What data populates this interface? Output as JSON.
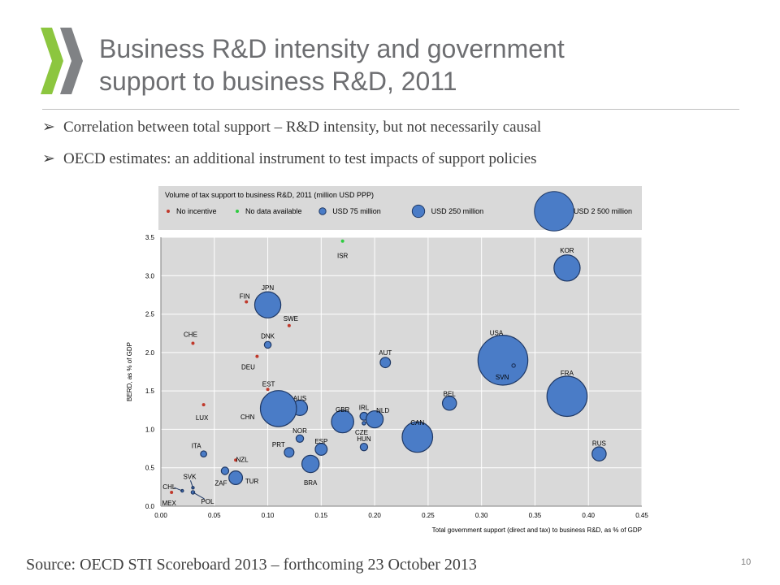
{
  "slide": {
    "title_line1": "Business R&D intensity and government",
    "title_line2": "support to business R&D, 2011",
    "bullets": [
      "Correlation between total support – R&D intensity, but not necessarily causal",
      "OECD  estimates: an additional instrument to test impacts of support policies"
    ],
    "bullet_marker": "➢",
    "source": "Source: OECD STI Scoreboard 2013 – forthcoming 23 October 2013",
    "page_number": "10"
  },
  "colors": {
    "accent_green": "#8cc63f",
    "logo_grey": "#808285",
    "bubble_fill": "#4a7cc7",
    "bubble_stroke": "#1f3864",
    "no_incentive": "#c0392b",
    "no_data": "#2ecc40",
    "plot_bg": "#d9d9d9"
  },
  "chart_data": {
    "type": "scatter",
    "legend_title": "Volume of tax support to business R&D, 2011 (million USD PPP)",
    "legend": [
      {
        "label": "No incentive",
        "kind": "no_incentive"
      },
      {
        "label": "No data available",
        "kind": "no_data"
      },
      {
        "label": "USD 75 million",
        "kind": "bubble",
        "value": 75
      },
      {
        "label": "USD 250 million",
        "kind": "bubble",
        "value": 250
      },
      {
        "label": "USD 2 500 million",
        "kind": "bubble",
        "value": 2500
      }
    ],
    "legend_placement": "top",
    "xlabel": "Total government support (direct and tax) to business R&D, as % of GDP",
    "ylabel": "BERD, as % of GDP",
    "xlim": [
      0,
      0.45
    ],
    "ylim": [
      0,
      3.5
    ],
    "xticks": [
      "0.00",
      "0.05",
      "0.10",
      "0.15",
      "0.20",
      "0.25",
      "0.30",
      "0.35",
      "0.40",
      "0.45"
    ],
    "yticks": [
      "0.0",
      "0.5",
      "1.0",
      "1.5",
      "2.0",
      "2.5",
      "3.0",
      "3.5"
    ],
    "grid": true,
    "points": [
      {
        "label": "ISR",
        "x": 0.17,
        "y": 3.45,
        "kind": "no_data",
        "size": 0
      },
      {
        "label": "KOR",
        "x": 0.38,
        "y": 3.1,
        "kind": "bubble",
        "size": 1100
      },
      {
        "label": "JPN",
        "x": 0.1,
        "y": 2.62,
        "kind": "bubble",
        "size": 1100
      },
      {
        "label": "FIN",
        "x": 0.08,
        "y": 2.66,
        "kind": "no_incentive",
        "size": 0
      },
      {
        "label": "SWE",
        "x": 0.12,
        "y": 2.35,
        "kind": "no_incentive",
        "size": 0
      },
      {
        "label": "CHE",
        "x": 0.03,
        "y": 2.12,
        "kind": "no_incentive",
        "size": 0
      },
      {
        "label": "DNK",
        "x": 0.1,
        "y": 2.1,
        "kind": "bubble",
        "size": 75
      },
      {
        "label": "DEU",
        "x": 0.09,
        "y": 1.95,
        "kind": "no_incentive",
        "size": 0
      },
      {
        "label": "USA",
        "x": 0.32,
        "y": 1.9,
        "kind": "bubble",
        "size": 4000
      },
      {
        "label": "SVN",
        "x": 0.33,
        "y": 1.83,
        "kind": "bubble",
        "size": 20
      },
      {
        "label": "AUT",
        "x": 0.21,
        "y": 1.87,
        "kind": "bubble",
        "size": 170
      },
      {
        "label": "FRA",
        "x": 0.38,
        "y": 1.43,
        "kind": "bubble",
        "size": 2600
      },
      {
        "label": "EST",
        "x": 0.1,
        "y": 1.52,
        "kind": "no_incentive",
        "size": 0
      },
      {
        "label": "AUS",
        "x": 0.13,
        "y": 1.28,
        "kind": "bubble",
        "size": 380
      },
      {
        "label": "CHN",
        "x": 0.11,
        "y": 1.27,
        "kind": "bubble",
        "size": 2100
      },
      {
        "label": "BEL",
        "x": 0.27,
        "y": 1.34,
        "kind": "bubble",
        "size": 320
      },
      {
        "label": "LUX",
        "x": 0.04,
        "y": 1.32,
        "kind": "no_incentive",
        "size": 0
      },
      {
        "label": "GBR",
        "x": 0.17,
        "y": 1.1,
        "kind": "bubble",
        "size": 800
      },
      {
        "label": "IRL",
        "x": 0.19,
        "y": 1.17,
        "kind": "bubble",
        "size": 100
      },
      {
        "label": "NLD",
        "x": 0.2,
        "y": 1.13,
        "kind": "bubble",
        "size": 470
      },
      {
        "label": "CZE",
        "x": 0.19,
        "y": 1.08,
        "kind": "bubble",
        "size": 20
      },
      {
        "label": "CAN",
        "x": 0.24,
        "y": 0.9,
        "kind": "bubble",
        "size": 1500
      },
      {
        "label": "NOR",
        "x": 0.13,
        "y": 0.88,
        "kind": "bubble",
        "size": 90
      },
      {
        "label": "HUN",
        "x": 0.19,
        "y": 0.77,
        "kind": "bubble",
        "size": 90
      },
      {
        "label": "ESP",
        "x": 0.15,
        "y": 0.74,
        "kind": "bubble",
        "size": 230
      },
      {
        "label": "PRT",
        "x": 0.12,
        "y": 0.7,
        "kind": "bubble",
        "size": 150
      },
      {
        "label": "ITA",
        "x": 0.04,
        "y": 0.68,
        "kind": "bubble",
        "size": 60
      },
      {
        "label": "RUS",
        "x": 0.41,
        "y": 0.68,
        "kind": "bubble",
        "size": 320
      },
      {
        "label": "NZL",
        "x": 0.07,
        "y": 0.6,
        "kind": "no_incentive",
        "size": 0
      },
      {
        "label": "BRA",
        "x": 0.14,
        "y": 0.55,
        "kind": "bubble",
        "size": 480
      },
      {
        "label": "ZAF",
        "x": 0.06,
        "y": 0.46,
        "kind": "bubble",
        "size": 90
      },
      {
        "label": "TUR",
        "x": 0.07,
        "y": 0.37,
        "kind": "bubble",
        "size": 300
      },
      {
        "label": "SVK",
        "x": 0.03,
        "y": 0.24,
        "kind": "bubble",
        "size": 10
      },
      {
        "label": "CHL",
        "x": 0.02,
        "y": 0.2,
        "kind": "bubble",
        "size": 10
      },
      {
        "label": "POL",
        "x": 0.03,
        "y": 0.18,
        "kind": "bubble",
        "size": 20
      },
      {
        "label": "MEX",
        "x": 0.01,
        "y": 0.18,
        "kind": "no_incentive",
        "size": 0
      }
    ]
  }
}
